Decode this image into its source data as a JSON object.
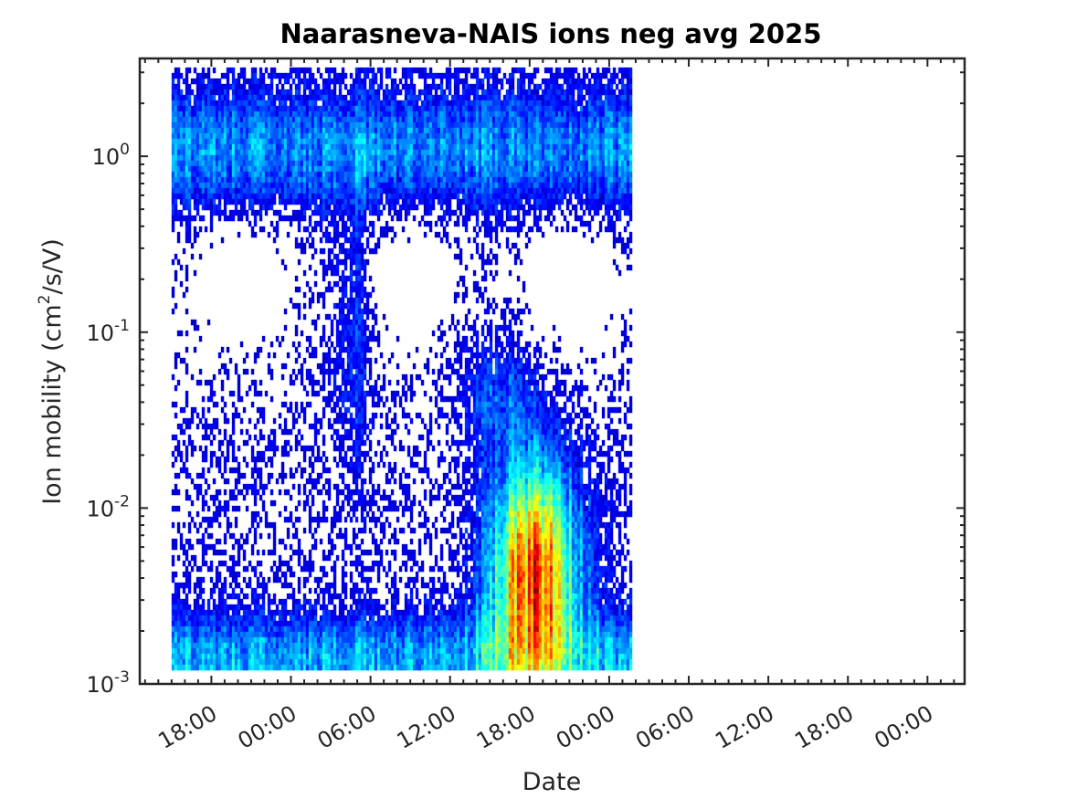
{
  "chart_data": {
    "type": "heatmap",
    "title": "Naarasneva-NAIS ions neg avg 2025",
    "xlabel": "Date",
    "ylabel": {
      "prefix": "Ion mobility (cm",
      "sup": "2",
      "suffix": "/s/V)"
    },
    "x_axis": {
      "unit": "hours",
      "range": [
        -3.4,
        58.8
      ],
      "ticks": [
        {
          "value": 2,
          "label": "18:00"
        },
        {
          "value": 8,
          "label": "00:00"
        },
        {
          "value": 14,
          "label": "06:00"
        },
        {
          "value": 20,
          "label": "12:00"
        },
        {
          "value": 26,
          "label": "18:00"
        },
        {
          "value": 32,
          "label": "00:00"
        },
        {
          "value": 38,
          "label": "06:00"
        },
        {
          "value": 44,
          "label": "12:00"
        },
        {
          "value": 50,
          "label": "18:00"
        },
        {
          "value": 56,
          "label": "00:00"
        }
      ]
    },
    "y_axis": {
      "scale": "log",
      "range": [
        0.001,
        3.6
      ],
      "ticks": [
        {
          "value": 0.001,
          "base": "10",
          "exp": "-3"
        },
        {
          "value": 0.01,
          "base": "10",
          "exp": "-2"
        },
        {
          "value": 0.1,
          "base": "10",
          "exp": "-1"
        },
        {
          "value": 1,
          "base": "10",
          "exp": "0"
        }
      ]
    },
    "data_extent": {
      "x": [
        -1.0,
        33.6
      ],
      "y": [
        0.00128,
        3.2
      ]
    },
    "colormap": "jet",
    "grid": false,
    "colors": {
      "axis": "#262626",
      "title": "#000000"
    }
  }
}
